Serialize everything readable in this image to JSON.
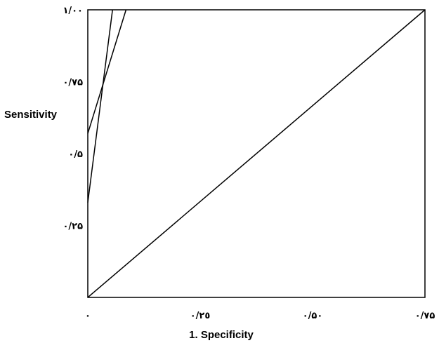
{
  "chart_data": {
    "type": "line",
    "xlabel": "1. Specificity",
    "ylabel": "Sensitivity",
    "xlim": [
      0,
      0.75
    ],
    "ylim": [
      0,
      1.0
    ],
    "x_ticks": [
      {
        "value": 0,
        "label": "٠"
      },
      {
        "value": 0.25,
        "label": "٠/٢٥"
      },
      {
        "value": 0.5,
        "label": "٠/۵٠"
      },
      {
        "value": 0.75,
        "label": "٠/٧۵"
      }
    ],
    "y_ticks": [
      {
        "value": 0.25,
        "label": "٠/٢۵"
      },
      {
        "value": 0.5,
        "label": "٠/۵"
      },
      {
        "value": 0.75,
        "label": "٠/٧۵"
      },
      {
        "value": 1.0,
        "label": "١/٠٠"
      }
    ],
    "series": [
      {
        "x": [
          0,
          0.055
        ],
        "y": [
          0.33,
          1.0
        ]
      },
      {
        "x": [
          0,
          0.085
        ],
        "y": [
          0.57,
          1.0
        ]
      },
      {
        "x": [
          0,
          0.75
        ],
        "y": [
          0,
          1.0
        ]
      }
    ],
    "grid": false,
    "line_color": "#000000"
  }
}
